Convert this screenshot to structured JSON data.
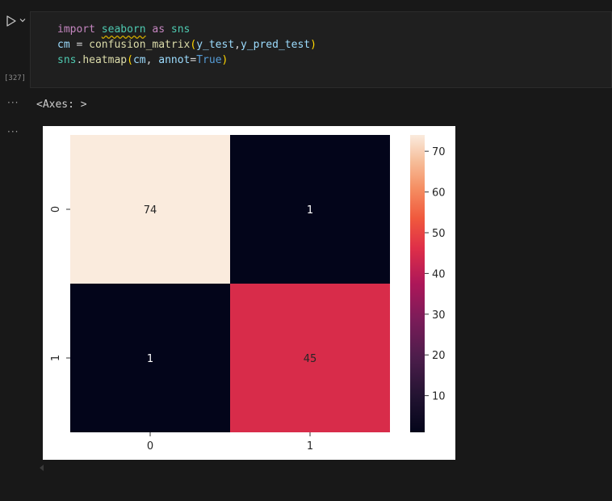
{
  "cell": {
    "exec_count": "[327]",
    "code_lines": [
      [
        {
          "t": "import",
          "c": "kw"
        },
        {
          "t": " ",
          "c": "op"
        },
        {
          "t": "seaborn",
          "c": "mod squiggle"
        },
        {
          "t": " ",
          "c": "op"
        },
        {
          "t": "as",
          "c": "kw"
        },
        {
          "t": " ",
          "c": "op"
        },
        {
          "t": "sns",
          "c": "mod"
        }
      ],
      [
        {
          "t": "cm",
          "c": "id"
        },
        {
          "t": " = ",
          "c": "op"
        },
        {
          "t": "confusion_matrix",
          "c": "fn"
        },
        {
          "t": "(",
          "c": "pa"
        },
        {
          "t": "y_test",
          "c": "id"
        },
        {
          "t": ",",
          "c": "op"
        },
        {
          "t": "y_pred_test",
          "c": "id"
        },
        {
          "t": ")",
          "c": "pa"
        }
      ],
      [
        {
          "t": "sns",
          "c": "mod"
        },
        {
          "t": ".",
          "c": "op"
        },
        {
          "t": "heatmap",
          "c": "fn"
        },
        {
          "t": "(",
          "c": "pa"
        },
        {
          "t": "cm",
          "c": "id"
        },
        {
          "t": ", ",
          "c": "op"
        },
        {
          "t": "annot",
          "c": "id"
        },
        {
          "t": "=",
          "c": "op"
        },
        {
          "t": "True",
          "c": "bo"
        },
        {
          "t": ")",
          "c": "pa"
        }
      ]
    ]
  },
  "output": {
    "dots": "···",
    "text": "<Axes: >"
  },
  "chart_data": {
    "type": "heatmap",
    "x_categories": [
      "0",
      "1"
    ],
    "y_categories": [
      "0",
      "1"
    ],
    "values": [
      [
        74,
        1
      ],
      [
        1,
        45
      ]
    ],
    "annotations": [
      "74",
      "1",
      "1",
      "45"
    ],
    "colorbar": {
      "ticks": [
        10,
        20,
        30,
        40,
        50,
        60,
        70
      ],
      "range": [
        1,
        74
      ],
      "colormap": "rocket"
    },
    "title": "",
    "xlabel": "",
    "ylabel": ""
  }
}
